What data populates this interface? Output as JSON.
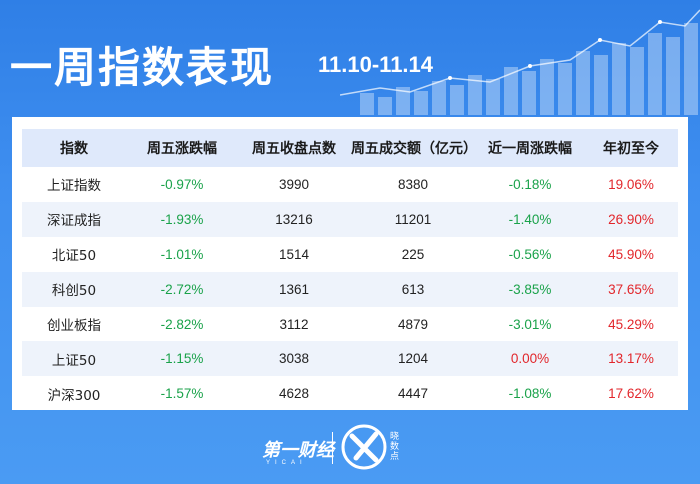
{
  "header": {
    "title": "一周指数表现",
    "date_range": "11.10-11.14"
  },
  "table": {
    "columns": [
      "指数",
      "周五涨跌幅",
      "周五收盘点数",
      "周五成交额（亿元）",
      "近一周涨跌幅",
      "年初至今"
    ],
    "rows": [
      {
        "name": "上证指数",
        "fri_change": "-0.97%",
        "close": "3990",
        "turnover": "8380",
        "week_change": "-0.18%",
        "ytd": "19.06%"
      },
      {
        "name": "深证成指",
        "fri_change": "-1.93%",
        "close": "13216",
        "turnover": "11201",
        "week_change": "-1.40%",
        "ytd": "26.90%"
      },
      {
        "name": "北证50",
        "fri_change": "-1.01%",
        "close": "1514",
        "turnover": "225",
        "week_change": "-0.56%",
        "ytd": "45.90%"
      },
      {
        "name": "科创50",
        "fri_change": "-2.72%",
        "close": "1361",
        "turnover": "613",
        "week_change": "-3.85%",
        "ytd": "37.65%"
      },
      {
        "name": "创业板指",
        "fri_change": "-2.82%",
        "close": "3112",
        "turnover": "4879",
        "week_change": "-3.01%",
        "ytd": "45.29%"
      },
      {
        "name": "上证50",
        "fri_change": "-1.15%",
        "close": "3038",
        "turnover": "1204",
        "week_change": "0.00%",
        "ytd": "13.17%"
      },
      {
        "name": "沪深300",
        "fri_change": "-1.57%",
        "close": "4628",
        "turnover": "4447",
        "week_change": "-1.08%",
        "ytd": "17.62%"
      }
    ]
  },
  "footer": {
    "brand": "第一财经",
    "brand_sub": "YICAI",
    "product": "晓数点"
  },
  "colors": {
    "background": "#3f8ff0",
    "header_row": "#dfe9fb",
    "negative": "#1aa24a",
    "positive": "#e2262b"
  }
}
